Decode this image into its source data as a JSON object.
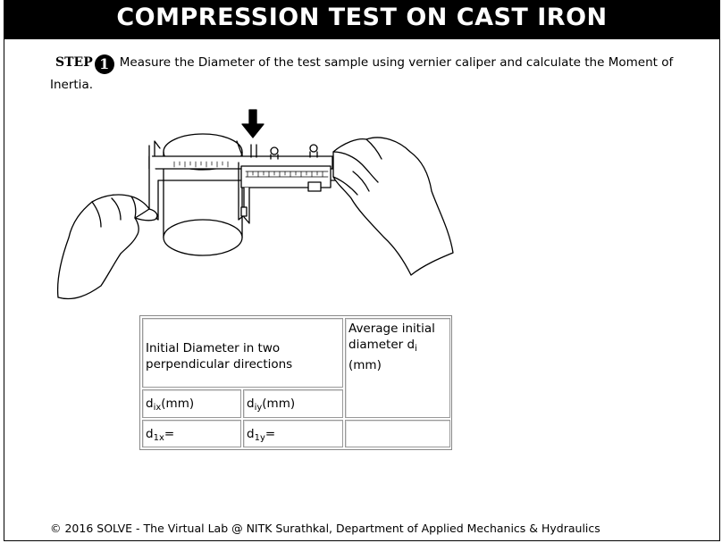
{
  "header": {
    "title": "COMPRESSION TEST ON CAST IRON"
  },
  "step": {
    "label": "STEP",
    "number": "1",
    "text": "Measure the Diameter of the test sample using vernier caliper and calculate the Moment of Inertia."
  },
  "table": {
    "header_left": "Initial Diameter in two perpendicular directions",
    "header_right_main": "Average initial diameter d",
    "header_right_sub": "i",
    "header_right_unit": "(mm)",
    "dix_main": "d",
    "dix_sub": "ix",
    "dix_unit": "(mm)",
    "diy_main": "d",
    "diy_sub": "iy",
    "diy_unit": "(mm)",
    "d1x_main": "d",
    "d1x_sub": "1x",
    "d1x_eq": "=",
    "d1y_main": "d",
    "d1y_sub": "1y",
    "d1y_eq": "="
  },
  "footer": {
    "text": "© 2016 SOLVE - The Virtual Lab @ NITK Surathkal, Department of Applied Mechanics & Hydraulics"
  },
  "icons": {
    "step_marker": "dingbat-circled-1",
    "arrow": "down-arrow-icon"
  }
}
